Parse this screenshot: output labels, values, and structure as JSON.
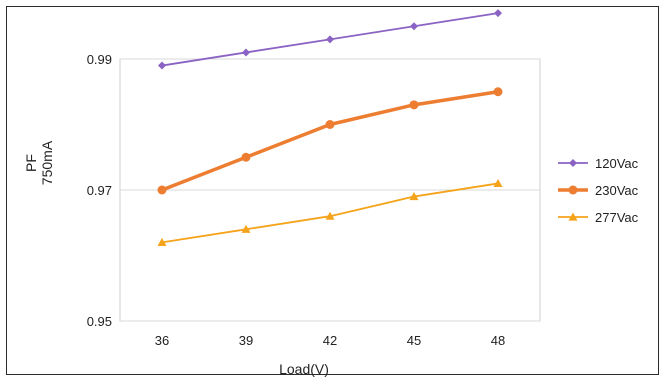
{
  "chart_data": {
    "type": "line",
    "title": "",
    "xlabel": "Load(V)",
    "ylabel_lines": [
      "PF",
      "750mA"
    ],
    "categories": [
      "36",
      "39",
      "42",
      "45",
      "48"
    ],
    "ylim": [
      0.95,
      0.99
    ],
    "yticks": [
      "0.95",
      "0.97",
      "0.99"
    ],
    "grid": true,
    "legend_position": "right",
    "series": [
      {
        "name": "120Vac",
        "color": "#8a63c4",
        "marker": "diamond",
        "values": [
          0.989,
          0.991,
          0.993,
          0.995,
          0.997
        ]
      },
      {
        "name": "230Vac",
        "color": "#ed7d31",
        "marker": "circle",
        "values": [
          0.97,
          0.975,
          0.98,
          0.983,
          0.985
        ]
      },
      {
        "name": "277Vac",
        "color": "#f5a31a",
        "marker": "triangle",
        "values": [
          0.962,
          0.964,
          0.966,
          0.969,
          0.971
        ]
      }
    ]
  }
}
